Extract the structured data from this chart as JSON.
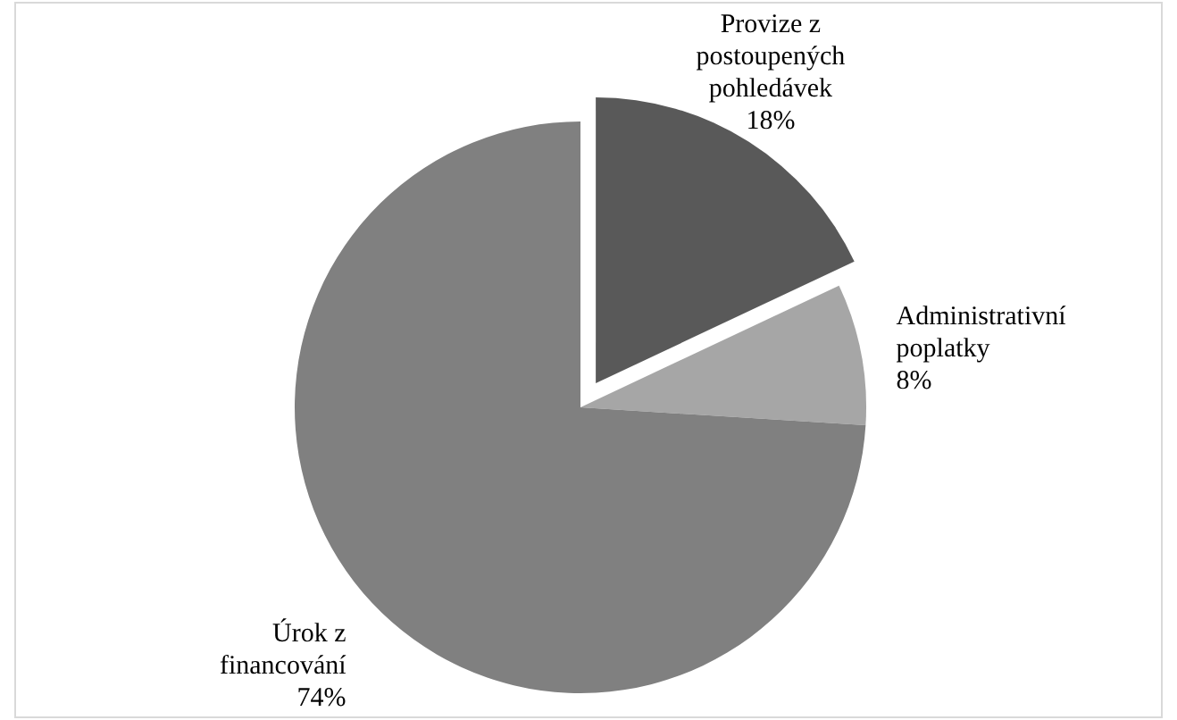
{
  "chart_data": {
    "type": "pie",
    "categories": [
      "Provize z postoupených pohledávek",
      "Administrativní poplatky",
      "Úrok z financování"
    ],
    "values": [
      18,
      8,
      74
    ],
    "colors": [
      "#595959",
      "#a6a6a6",
      "#808080"
    ],
    "value_labels": [
      "18%",
      "8%",
      "74%"
    ]
  }
}
